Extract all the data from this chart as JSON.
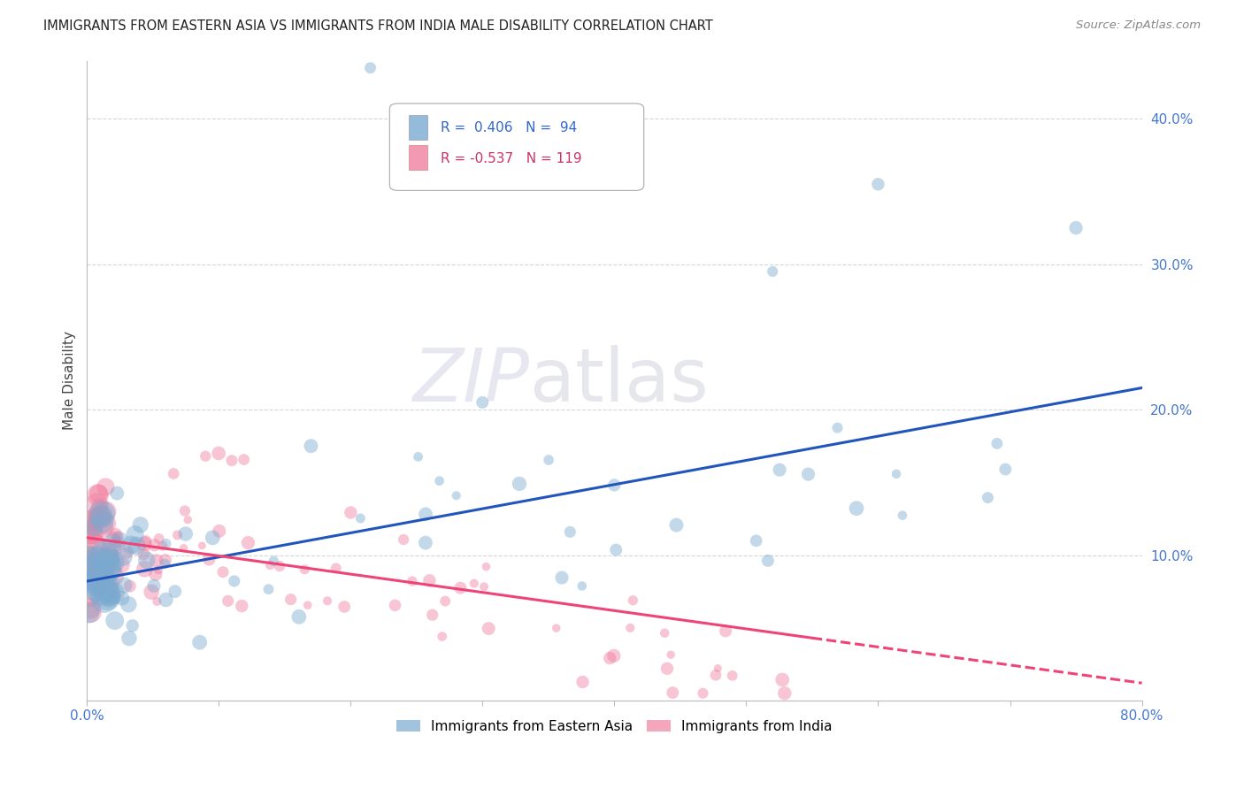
{
  "title": "IMMIGRANTS FROM EASTERN ASIA VS IMMIGRANTS FROM INDIA MALE DISABILITY CORRELATION CHART",
  "source": "Source: ZipAtlas.com",
  "ylabel": "Male Disability",
  "xlim": [
    0.0,
    0.8
  ],
  "ylim": [
    0.0,
    0.44
  ],
  "grid_color": "#cccccc",
  "background_color": "#ffffff",
  "watermark": "ZIPatlas",
  "legend_r_blue": "0.406",
  "legend_n_blue": "94",
  "legend_r_pink": "-0.537",
  "legend_n_pink": "119",
  "blue_color": "#7aaad0",
  "pink_color": "#f080a0",
  "line_blue_color": "#2255bb",
  "line_pink_color": "#ee4477",
  "tick_color": "#4477cc",
  "blue_line": {
    "x0": 0.0,
    "y0": 0.082,
    "x1": 0.8,
    "y1": 0.215
  },
  "pink_line": {
    "x0": 0.0,
    "y0": 0.112,
    "x1": 0.55,
    "y1": 0.043
  },
  "pink_dash_line": {
    "x0": 0.55,
    "y0": 0.043,
    "x1": 0.8,
    "y1": 0.012
  }
}
